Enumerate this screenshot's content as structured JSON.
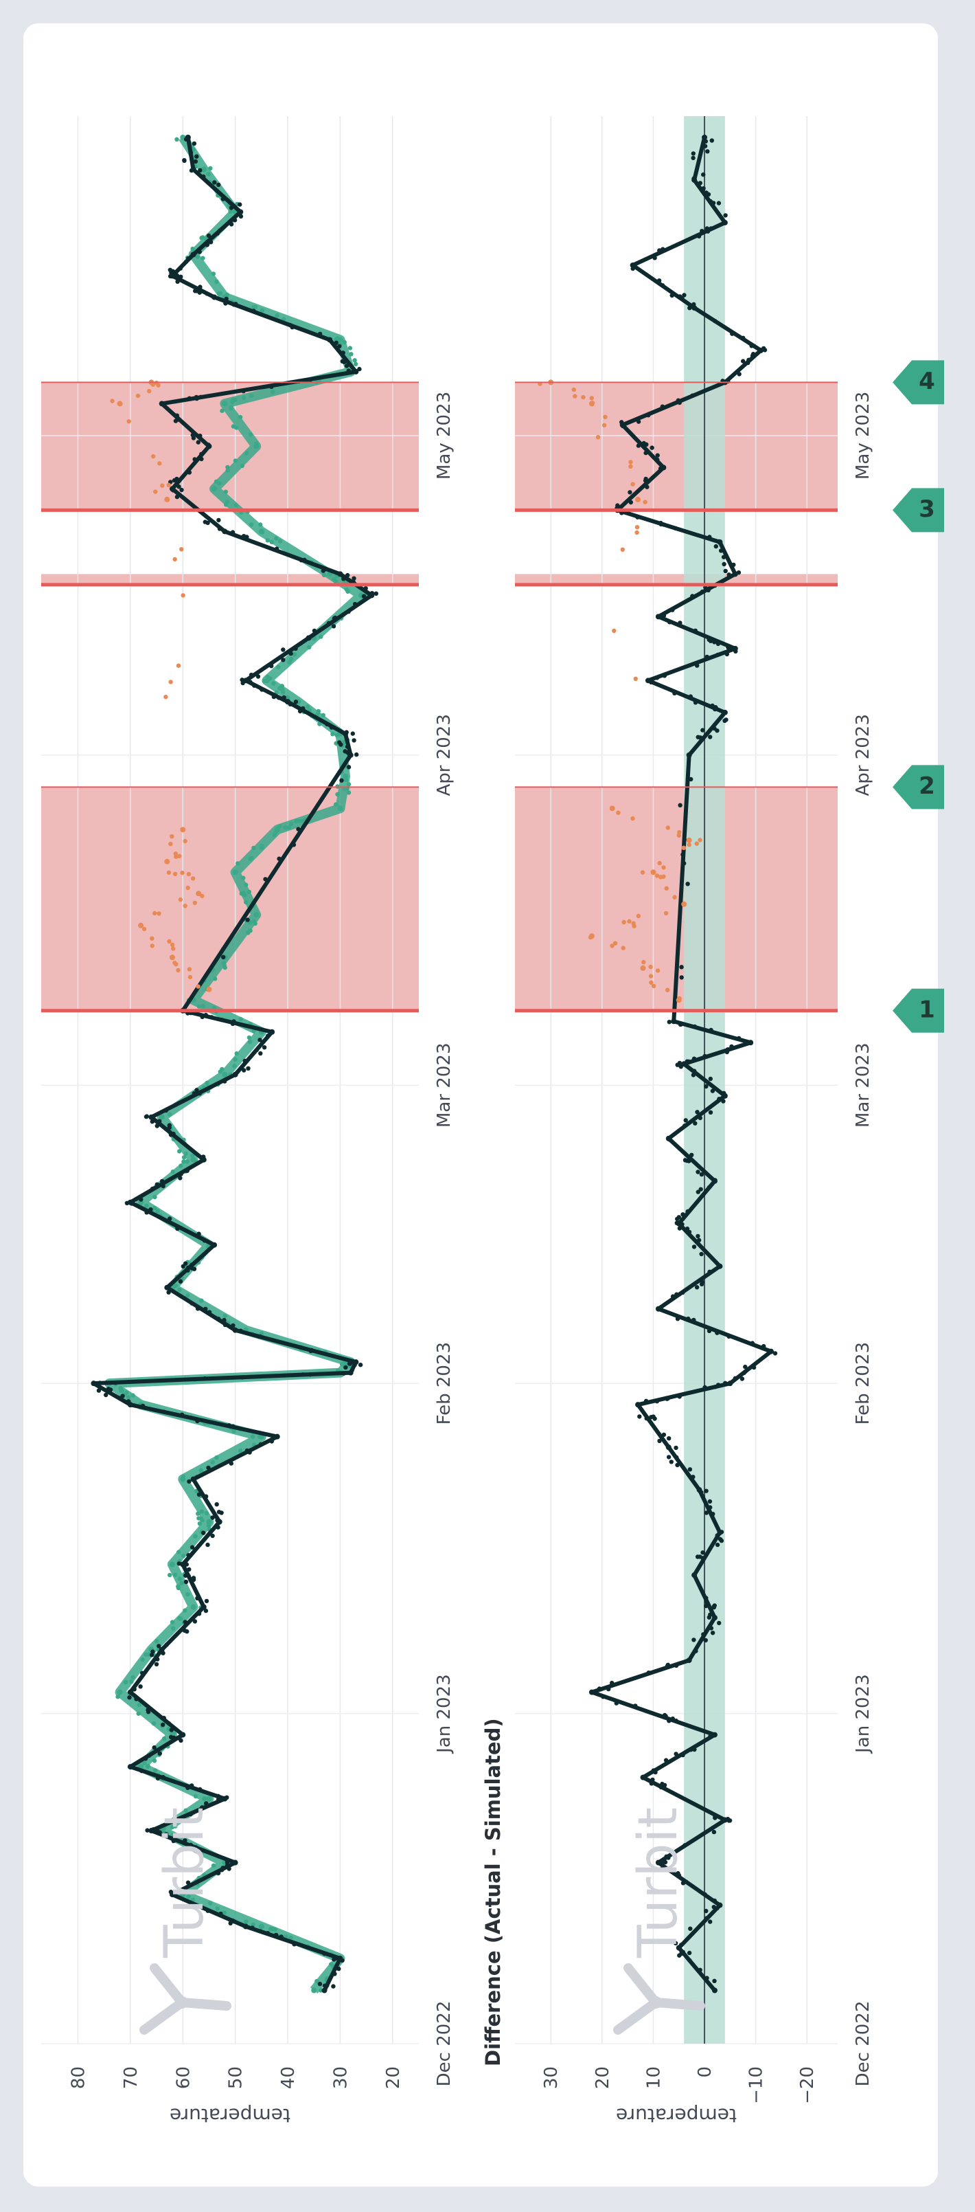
{
  "watermark": "Turbit",
  "colors": {
    "actual": "#0e2a2f",
    "simulated": "#3aa889",
    "anomaly": "#e88a55",
    "highlight": "#e9a3a3",
    "highlight_edge": "#e35b5b",
    "band": "#b9ded3",
    "flag": "#3aa889"
  },
  "chart_data": [
    {
      "type": "scatter",
      "title": "",
      "ylabel": "temperature",
      "x_ticks": [
        "Dec 2022",
        "Jan 2023",
        "Feb 2023",
        "Mar 2023",
        "Apr 2023",
        "May 2023"
      ],
      "y_ticks": [
        20,
        30,
        40,
        50,
        60,
        70,
        80
      ],
      "xlim": [
        "2022-12-01",
        "2023-05-31"
      ],
      "ylim": [
        15,
        87
      ],
      "grid": true,
      "series": [
        {
          "key": "simulated",
          "points": [
            [
              "2022-12-06",
              35
            ],
            [
              "2022-12-09",
              30
            ],
            [
              "2022-12-12",
              45
            ],
            [
              "2022-12-15",
              60
            ],
            [
              "2022-12-18",
              52
            ],
            [
              "2022-12-21",
              64
            ],
            [
              "2022-12-24",
              55
            ],
            [
              "2022-12-27",
              68
            ],
            [
              "2022-12-30",
              62
            ],
            [
              "2023-01-03",
              72
            ],
            [
              "2023-01-07",
              66
            ],
            [
              "2023-01-11",
              58
            ],
            [
              "2023-01-15",
              62
            ],
            [
              "2023-01-19",
              55
            ],
            [
              "2023-01-23",
              60
            ],
            [
              "2023-01-27",
              45
            ],
            [
              "2023-01-30",
              68
            ],
            [
              "2023-02-01",
              74
            ],
            [
              "2023-02-02",
              30
            ],
            [
              "2023-02-03",
              28
            ],
            [
              "2023-02-06",
              48
            ],
            [
              "2023-02-10",
              62
            ],
            [
              "2023-02-14",
              55
            ],
            [
              "2023-02-18",
              68
            ],
            [
              "2023-02-22",
              58
            ],
            [
              "2023-02-26",
              64
            ],
            [
              "2023-03-02",
              52
            ],
            [
              "2023-03-06",
              45
            ],
            [
              "2023-03-09",
              58
            ],
            [
              "2023-03-13",
              52
            ],
            [
              "2023-03-17",
              46
            ],
            [
              "2023-03-21",
              50
            ],
            [
              "2023-03-25",
              42
            ],
            [
              "2023-03-27",
              30
            ],
            [
              "2023-03-30",
              29
            ],
            [
              "2023-04-03",
              30
            ],
            [
              "2023-04-06",
              38
            ],
            [
              "2023-04-08",
              44
            ],
            [
              "2023-04-12",
              35
            ],
            [
              "2023-04-16",
              26
            ],
            [
              "2023-04-18",
              32
            ],
            [
              "2023-04-22",
              45
            ],
            [
              "2023-04-26",
              54
            ],
            [
              "2023-04-30",
              46
            ],
            [
              "2023-05-04",
              52
            ],
            [
              "2023-05-07",
              28
            ],
            [
              "2023-05-10",
              30
            ],
            [
              "2023-05-14",
              52
            ],
            [
              "2023-05-18",
              58
            ],
            [
              "2023-05-22",
              50
            ],
            [
              "2023-05-26",
              56
            ],
            [
              "2023-05-29",
              60
            ]
          ]
        },
        {
          "key": "actual",
          "points": [
            [
              "2022-12-06",
              33
            ],
            [
              "2022-12-09",
              30
            ],
            [
              "2022-12-12",
              48
            ],
            [
              "2022-12-15",
              62
            ],
            [
              "2022-12-18",
              50
            ],
            [
              "2022-12-21",
              66
            ],
            [
              "2022-12-24",
              52
            ],
            [
              "2022-12-27",
              70
            ],
            [
              "2022-12-30",
              60
            ],
            [
              "2023-01-03",
              70
            ],
            [
              "2023-01-07",
              64
            ],
            [
              "2023-01-11",
              56
            ],
            [
              "2023-01-15",
              60
            ],
            [
              "2023-01-19",
              53
            ],
            [
              "2023-01-23",
              58
            ],
            [
              "2023-01-27",
              42
            ],
            [
              "2023-01-30",
              70
            ],
            [
              "2023-02-01",
              77
            ],
            [
              "2023-02-02",
              28
            ],
            [
              "2023-02-03",
              27
            ],
            [
              "2023-02-06",
              50
            ],
            [
              "2023-02-10",
              63
            ],
            [
              "2023-02-14",
              54
            ],
            [
              "2023-02-18",
              70
            ],
            [
              "2023-02-22",
              56
            ],
            [
              "2023-02-26",
              66
            ],
            [
              "2023-03-02",
              50
            ],
            [
              "2023-03-06",
              43
            ],
            [
              "2023-03-08",
              60
            ],
            [
              "2023-04-01",
              28
            ],
            [
              "2023-04-03",
              29
            ],
            [
              "2023-04-06",
              40
            ],
            [
              "2023-04-08",
              48
            ],
            [
              "2023-04-12",
              36
            ],
            [
              "2023-04-16",
              24
            ],
            [
              "2023-04-18",
              30
            ],
            [
              "2023-04-22",
              52
            ],
            [
              "2023-04-26",
              62
            ],
            [
              "2023-04-30",
              55
            ],
            [
              "2023-05-04",
              64
            ],
            [
              "2023-05-07",
              27
            ],
            [
              "2023-05-10",
              32
            ],
            [
              "2023-05-14",
              54
            ],
            [
              "2023-05-16",
              62
            ],
            [
              "2023-05-18",
              58
            ],
            [
              "2023-05-22",
              49
            ],
            [
              "2023-05-26",
              58
            ],
            [
              "2023-05-29",
              59
            ]
          ]
        },
        {
          "key": "anomaly",
          "points": [
            [
              "2023-03-10",
              55
            ],
            [
              "2023-03-13",
              62
            ],
            [
              "2023-03-16",
              68
            ],
            [
              "2023-03-19",
              57
            ],
            [
              "2023-03-22",
              63
            ],
            [
              "2023-03-25",
              60
            ],
            [
              "2023-04-25",
              63
            ],
            [
              "2023-05-04",
              72
            ],
            [
              "2023-05-06",
              66
            ]
          ]
        }
      ],
      "highlight_regions": [
        {
          "start": "2023-03-08",
          "end": "2023-03-29"
        },
        {
          "start": "2023-04-17",
          "end": "2023-04-18"
        },
        {
          "start": "2023-04-24",
          "end": "2023-05-06"
        }
      ]
    },
    {
      "type": "scatter",
      "title": "Difference (Actual - Simulated)",
      "ylabel": "temperature",
      "x_ticks": [
        "Dec 2022",
        "Jan 2023",
        "Feb 2023",
        "Mar 2023",
        "Apr 2023",
        "May 2023"
      ],
      "y_ticks": [
        -20,
        -10,
        0,
        10,
        20,
        30
      ],
      "xlim": [
        "2022-12-01",
        "2023-05-31"
      ],
      "ylim": [
        -26,
        37
      ],
      "grid": true,
      "tolerance_band": [
        -4,
        4
      ],
      "zero_line": true,
      "series": [
        {
          "key": "difference",
          "points": [
            [
              "2022-12-06",
              -2
            ],
            [
              "2022-12-10",
              5
            ],
            [
              "2022-12-14",
              -3
            ],
            [
              "2022-12-18",
              9
            ],
            [
              "2022-12-22",
              -4
            ],
            [
              "2022-12-26",
              12
            ],
            [
              "2022-12-30",
              -2
            ],
            [
              "2023-01-03",
              22
            ],
            [
              "2023-01-06",
              3
            ],
            [
              "2023-01-10",
              -2
            ],
            [
              "2023-01-14",
              2
            ],
            [
              "2023-01-18",
              -3
            ],
            [
              "2023-01-22",
              1
            ],
            [
              "2023-01-26",
              7
            ],
            [
              "2023-01-30",
              13
            ],
            [
              "2023-02-01",
              -5
            ],
            [
              "2023-02-04",
              -13
            ],
            [
              "2023-02-08",
              9
            ],
            [
              "2023-02-12",
              -3
            ],
            [
              "2023-02-16",
              5
            ],
            [
              "2023-02-20",
              -2
            ],
            [
              "2023-02-24",
              7
            ],
            [
              "2023-02-28",
              -4
            ],
            [
              "2023-03-03",
              4
            ],
            [
              "2023-03-05",
              -9
            ],
            [
              "2023-03-07",
              6
            ],
            [
              "2023-04-01",
              3
            ],
            [
              "2023-04-05",
              -4
            ],
            [
              "2023-04-08",
              11
            ],
            [
              "2023-04-11",
              -6
            ],
            [
              "2023-04-14",
              9
            ],
            [
              "2023-04-18",
              -6
            ],
            [
              "2023-04-21",
              -3
            ],
            [
              "2023-04-24",
              17
            ],
            [
              "2023-04-28",
              8
            ],
            [
              "2023-05-02",
              16
            ],
            [
              "2023-05-06",
              -4
            ],
            [
              "2023-05-09",
              -11
            ],
            [
              "2023-05-13",
              2
            ],
            [
              "2023-05-17",
              14
            ],
            [
              "2023-05-21",
              -4
            ],
            [
              "2023-05-25",
              2
            ],
            [
              "2023-05-29",
              0
            ]
          ]
        },
        {
          "key": "anomaly",
          "points": [
            [
              "2023-03-09",
              5
            ],
            [
              "2023-03-12",
              12
            ],
            [
              "2023-03-15",
              22
            ],
            [
              "2023-03-18",
              4
            ],
            [
              "2023-03-21",
              10
            ],
            [
              "2023-03-24",
              3
            ],
            [
              "2023-03-27",
              18
            ],
            [
              "2023-04-25",
              13
            ],
            [
              "2023-05-04",
              22
            ],
            [
              "2023-05-06",
              30
            ]
          ]
        }
      ],
      "highlight_regions": [
        {
          "start": "2023-03-08",
          "end": "2023-03-29"
        },
        {
          "start": "2023-04-17",
          "end": "2023-04-18"
        },
        {
          "start": "2023-04-24",
          "end": "2023-05-06"
        }
      ]
    }
  ],
  "markers": [
    {
      "label": "1",
      "date": "2023-03-08"
    },
    {
      "label": "2",
      "date": "2023-03-29"
    },
    {
      "label": "3",
      "date": "2023-04-24"
    },
    {
      "label": "4",
      "date": "2023-05-06"
    }
  ]
}
